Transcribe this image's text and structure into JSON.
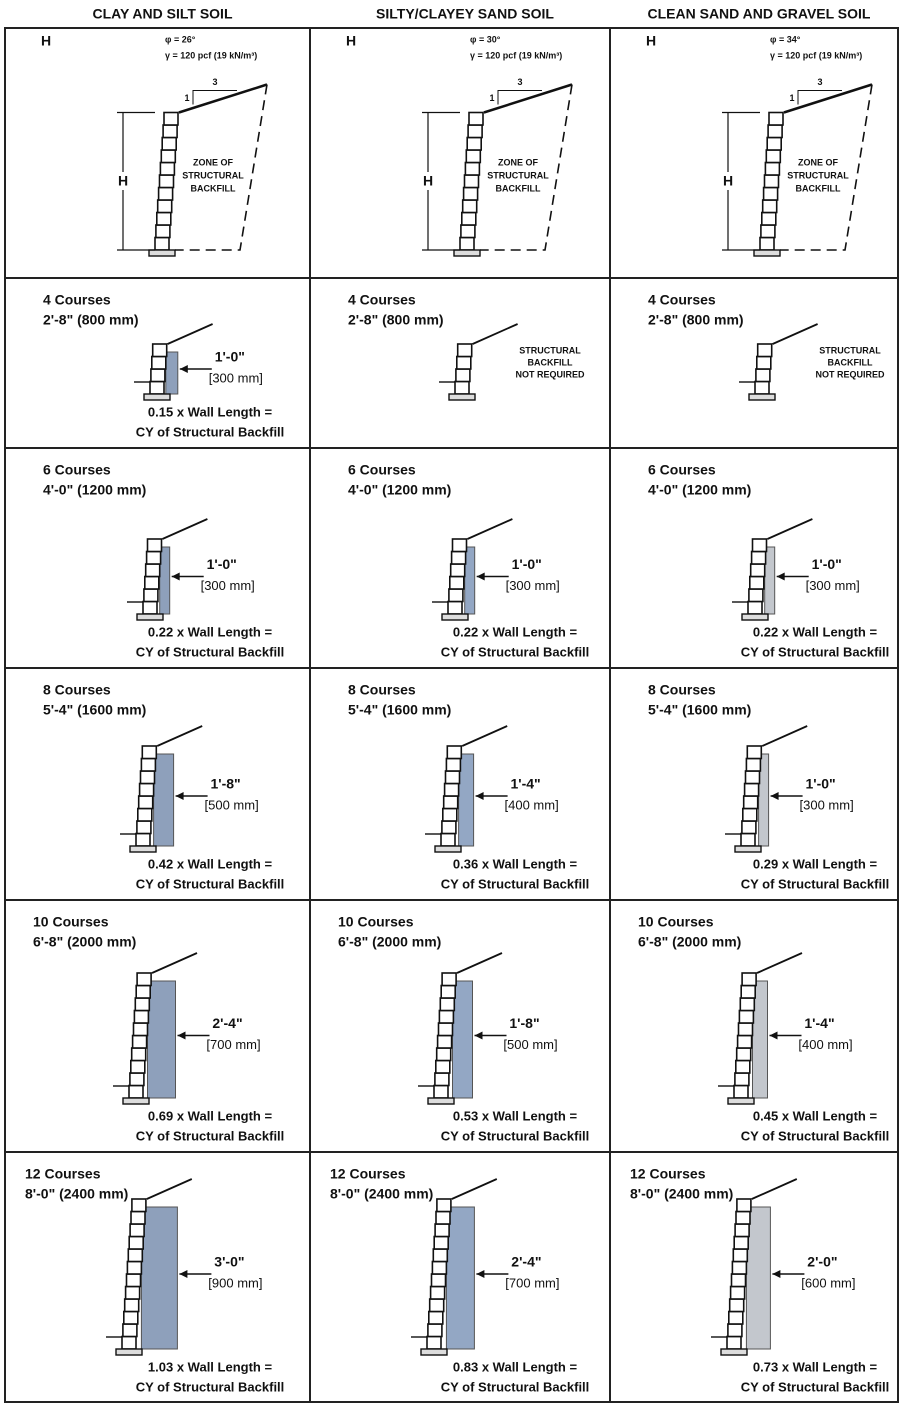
{
  "columns": [
    {
      "title": "CLAY AND SILT SOIL",
      "corner": "H",
      "phi": "φ = 26°",
      "gamma": "γ = 120 pcf (19 kN/m³)",
      "run": "3",
      "rise": "1",
      "height": "H",
      "zone": [
        "ZONE OF",
        "STRUCTURAL",
        "BACKFILL"
      ]
    },
    {
      "title": "SILTY/CLAYEY SAND SOIL",
      "corner": "H",
      "phi": "φ = 30°",
      "gamma": "γ = 120 pcf (19 kN/m³)",
      "run": "3",
      "rise": "1",
      "height": "H",
      "zone": [
        "ZONE OF",
        "STRUCTURAL",
        "BACKFILL"
      ]
    },
    {
      "title": "CLEAN SAND AND GRAVEL SOIL",
      "corner": "H",
      "phi": "φ = 34°",
      "gamma": "γ = 120 pcf (19 kN/m³)",
      "run": "3",
      "rise": "1",
      "height": "H",
      "zone": [
        "ZONE OF",
        "STRUCTURAL",
        "BACKFILL"
      ]
    }
  ],
  "rows": [
    {
      "courses": "4 Courses",
      "height": "2'-8\" (800 mm)",
      "cells": [
        {
          "width": "1'-0\"",
          "width_mm": "[300 mm]",
          "quantity": "0.15 x Wall Length =",
          "unit": "CY of Structural Backfill"
        },
        {
          "note": [
            "STRUCTURAL",
            "BACKFILL",
            "NOT REQUIRED"
          ]
        },
        {
          "note": [
            "STRUCTURAL",
            "BACKFILL",
            "NOT REQUIRED"
          ]
        }
      ]
    },
    {
      "courses": "6 Courses",
      "height": "4'-0\" (1200 mm)",
      "cells": [
        {
          "width": "1'-0\"",
          "width_mm": "[300 mm]",
          "quantity": "0.22 x Wall Length =",
          "unit": "CY of Structural Backfill"
        },
        {
          "width": "1'-0\"",
          "width_mm": "[300 mm]",
          "quantity": "0.22 x Wall Length =",
          "unit": "CY of Structural Backfill"
        },
        {
          "width": "1'-0\"",
          "width_mm": "[300 mm]",
          "quantity": "0.22 x Wall Length =",
          "unit": "CY of Structural Backfill"
        }
      ]
    },
    {
      "courses": "8 Courses",
      "height": "5'-4\" (1600 mm)",
      "cells": [
        {
          "width": "1'-8\"",
          "width_mm": "[500 mm]",
          "quantity": "0.42 x Wall Length =",
          "unit": "CY of Structural Backfill"
        },
        {
          "width": "1'-4\"",
          "width_mm": "[400 mm]",
          "quantity": "0.36 x Wall Length =",
          "unit": "CY of Structural Backfill"
        },
        {
          "width": "1'-0\"",
          "width_mm": "[300 mm]",
          "quantity": "0.29 x Wall Length =",
          "unit": "CY of Structural Backfill"
        }
      ]
    },
    {
      "courses": "10 Courses",
      "height": "6'-8\" (2000 mm)",
      "cells": [
        {
          "width": "2'-4\"",
          "width_mm": "[700 mm]",
          "quantity": "0.69 x Wall Length =",
          "unit": "CY of Structural Backfill"
        },
        {
          "width": "1'-8\"",
          "width_mm": "[500 mm]",
          "quantity": "0.53 x Wall Length =",
          "unit": "CY of Structural Backfill"
        },
        {
          "width": "1'-4\"",
          "width_mm": "[400 mm]",
          "quantity": "0.45 x Wall Length =",
          "unit": "CY of Structural Backfill"
        }
      ]
    },
    {
      "courses": "12 Courses",
      "height": "8'-0\" (2400 mm)",
      "cells": [
        {
          "width": "3'-0\"",
          "width_mm": "[900 mm]",
          "quantity": "1.03 x Wall Length =",
          "unit": "CY of Structural Backfill"
        },
        {
          "width": "2'-4\"",
          "width_mm": "[700 mm]",
          "quantity": "0.83 x Wall Length =",
          "unit": "CY of Structural Backfill"
        },
        {
          "width": "2'-0\"",
          "width_mm": "[600 mm]",
          "quantity": "0.73 x Wall Length =",
          "unit": "CY of Structural Backfill"
        }
      ]
    }
  ]
}
